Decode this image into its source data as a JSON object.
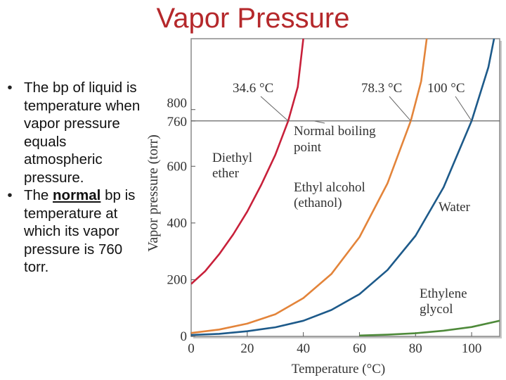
{
  "slide": {
    "title": "Vapor Pressure",
    "bullets": [
      {
        "text_before": "The bp of liquid is temperature when vapor pressure equals atmospheric pressure.",
        "bold": "",
        "text_after": ""
      },
      {
        "text_before": "The ",
        "bold": "normal",
        "text_after": " bp is temperature at which its vapor pressure is 760 torr."
      }
    ]
  },
  "chart_data": {
    "type": "line",
    "title": "",
    "xlabel": "Temperature (°C)",
    "ylabel": "Vapor pressure (torr)",
    "xlim": [
      0,
      110
    ],
    "ylim": [
      0,
      1050
    ],
    "xticks": [
      0,
      20,
      40,
      60,
      80,
      100
    ],
    "yticks": [
      0,
      200,
      400,
      600,
      760,
      800
    ],
    "reference_line": {
      "y": 760,
      "label": "Normal boiling point"
    },
    "boiling_point_labels": [
      "34.6 °C",
      "78.3 °C",
      "100 °C"
    ],
    "series": [
      {
        "name": "Diethyl ether",
        "label_lines": [
          "Diethyl",
          "ether"
        ],
        "color": "#c8203a",
        "x": [
          0,
          5,
          10,
          15,
          20,
          25,
          30,
          34.6,
          38,
          40
        ],
        "y": [
          185,
          230,
          290,
          360,
          440,
          535,
          640,
          760,
          880,
          1050
        ]
      },
      {
        "name": "Ethyl alcohol (ethanol)",
        "label_lines": [
          "Ethyl alcohol",
          "(ethanol)"
        ],
        "color": "#e3843a",
        "x": [
          0,
          10,
          20,
          30,
          40,
          50,
          60,
          70,
          78.3,
          82,
          84
        ],
        "y": [
          12,
          24,
          45,
          78,
          135,
          220,
          350,
          540,
          760,
          900,
          1050
        ]
      },
      {
        "name": "Water",
        "label_lines": [
          "Water"
        ],
        "color": "#1d5a8a",
        "x": [
          0,
          10,
          20,
          30,
          40,
          50,
          60,
          70,
          80,
          90,
          100,
          106,
          108
        ],
        "y": [
          5,
          9,
          18,
          32,
          55,
          93,
          149,
          234,
          355,
          526,
          760,
          950,
          1050
        ]
      },
      {
        "name": "Ethylene glycol",
        "label_lines": [
          "Ethylene",
          "glycol"
        ],
        "color": "#4e8a3a",
        "x": [
          60,
          70,
          80,
          90,
          100,
          110
        ],
        "y": [
          3,
          6,
          11,
          20,
          33,
          55
        ]
      }
    ]
  }
}
